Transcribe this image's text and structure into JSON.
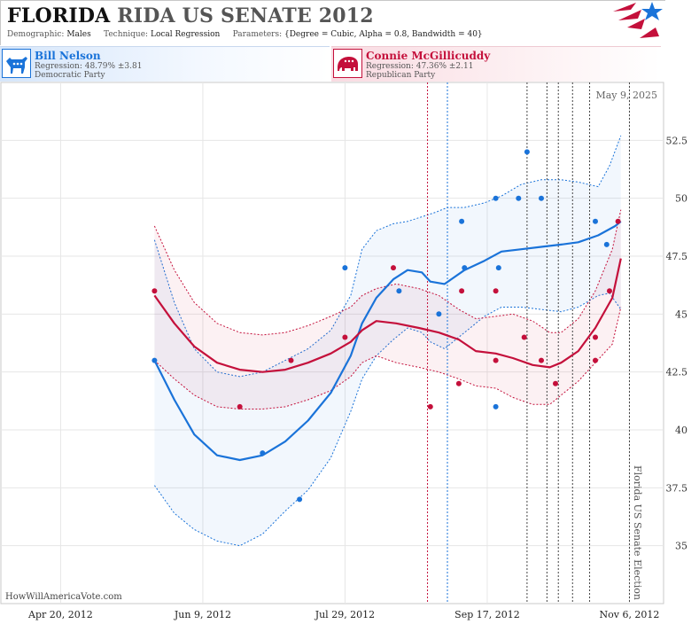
{
  "header": {
    "title_state": "FLORIDA",
    "title_rest": "RIDA US SENATE 2012",
    "demographic_label": "Demographic:",
    "demographic_value": "Males",
    "technique_label": "Technique:",
    "technique_value": "Local Regression",
    "parameters_label": "Parameters:",
    "parameters_value": "{Degree = Cubic, Alpha = 0.8, Bandwidth = 40}"
  },
  "candidates": {
    "dem": {
      "name": "Bill Nelson",
      "regression": "Regression: 48.79% ±3.81",
      "party": "Democratic Party",
      "color": "#1a73d9"
    },
    "rep": {
      "name": "Connie McGillicuddy",
      "regression": "Regression: 47.36% ±2.11",
      "party": "Republican Party",
      "color": "#c4103b"
    }
  },
  "credit": "HowWillAmericaVote.com",
  "chart_data": {
    "type": "scatter",
    "date_label": "May 9, 2025",
    "election_label": "Florida US Senate Election",
    "x_ticks": [
      "Apr 20, 2012",
      "Jun 9, 2012",
      "Jul 29, 2012",
      "Sep 17, 2012",
      "Nov 6, 2012"
    ],
    "y_ticks": [
      35,
      37.5,
      40,
      42.5,
      45,
      47.5,
      50,
      52.5
    ],
    "ylim": [
      32.5,
      55
    ],
    "xlim": [
      "2012-03-30",
      "2012-11-18"
    ],
    "series": [
      {
        "name": "Bill Nelson",
        "color": "#1a73d9",
        "points": [
          [
            "2012-05-23",
            43
          ],
          [
            "2012-06-30",
            39
          ],
          [
            "2012-07-13",
            37
          ],
          [
            "2012-07-29",
            47
          ],
          [
            "2012-08-17",
            46
          ],
          [
            "2012-08-31",
            45
          ],
          [
            "2012-09-08",
            49
          ],
          [
            "2012-09-09",
            47
          ],
          [
            "2012-09-20",
            41
          ],
          [
            "2012-09-20",
            50
          ],
          [
            "2012-09-21",
            47
          ],
          [
            "2012-09-28",
            50
          ],
          [
            "2012-10-01",
            52
          ],
          [
            "2012-10-06",
            50
          ],
          [
            "2012-10-25",
            49
          ],
          [
            "2012-10-29",
            48
          ]
        ],
        "fit": [
          [
            "2012-05-23",
            43
          ],
          [
            "2012-05-30",
            41.3
          ],
          [
            "2012-06-06",
            39.8
          ],
          [
            "2012-06-14",
            38.9
          ],
          [
            "2012-06-22",
            38.7
          ],
          [
            "2012-06-30",
            38.9
          ],
          [
            "2012-07-08",
            39.5
          ],
          [
            "2012-07-16",
            40.4
          ],
          [
            "2012-07-24",
            41.6
          ],
          [
            "2012-07-31",
            43.2
          ],
          [
            "2012-08-04",
            44.6
          ],
          [
            "2012-08-09",
            45.7
          ],
          [
            "2012-08-15",
            46.5
          ],
          [
            "2012-08-20",
            46.9
          ],
          [
            "2012-08-25",
            46.8
          ],
          [
            "2012-08-28",
            46.4
          ],
          [
            "2012-09-02",
            46.3
          ],
          [
            "2012-09-09",
            46.9
          ],
          [
            "2012-09-16",
            47.3
          ],
          [
            "2012-09-22",
            47.7
          ],
          [
            "2012-09-29",
            47.8
          ],
          [
            "2012-10-06",
            47.9
          ],
          [
            "2012-10-13",
            48
          ],
          [
            "2012-10-19",
            48.1
          ],
          [
            "2012-10-26",
            48.4
          ],
          [
            "2012-11-01",
            48.8
          ],
          [
            "2012-11-03",
            49
          ]
        ],
        "upper": [
          [
            "2012-05-23",
            48.2
          ],
          [
            "2012-05-30",
            45.5
          ],
          [
            "2012-06-06",
            43.5
          ],
          [
            "2012-06-14",
            42.5
          ],
          [
            "2012-06-22",
            42.3
          ],
          [
            "2012-06-30",
            42.5
          ],
          [
            "2012-07-08",
            43.0
          ],
          [
            "2012-07-16",
            43.5
          ],
          [
            "2012-07-24",
            44.3
          ],
          [
            "2012-07-31",
            45.8
          ],
          [
            "2012-08-04",
            47.8
          ],
          [
            "2012-08-09",
            48.6
          ],
          [
            "2012-08-15",
            48.9
          ],
          [
            "2012-08-20",
            49.0
          ],
          [
            "2012-08-25",
            49.2
          ],
          [
            "2012-08-30",
            49.4
          ],
          [
            "2012-09-03",
            49.6
          ],
          [
            "2012-09-09",
            49.6
          ],
          [
            "2012-09-16",
            49.8
          ],
          [
            "2012-09-22",
            50.1
          ],
          [
            "2012-09-29",
            50.6
          ],
          [
            "2012-10-06",
            50.8
          ],
          [
            "2012-10-13",
            50.8
          ],
          [
            "2012-10-19",
            50.7
          ],
          [
            "2012-10-26",
            50.5
          ],
          [
            "2012-10-30",
            51.4
          ],
          [
            "2012-11-03",
            52.7
          ]
        ],
        "lower": [
          [
            "2012-05-23",
            37.6
          ],
          [
            "2012-05-30",
            36.4
          ],
          [
            "2012-06-06",
            35.7
          ],
          [
            "2012-06-14",
            35.2
          ],
          [
            "2012-06-22",
            35
          ],
          [
            "2012-06-30",
            35.5
          ],
          [
            "2012-07-08",
            36.5
          ],
          [
            "2012-07-16",
            37.4
          ],
          [
            "2012-07-24",
            38.8
          ],
          [
            "2012-07-31",
            40.8
          ],
          [
            "2012-08-04",
            42.2
          ],
          [
            "2012-08-09",
            43.2
          ],
          [
            "2012-08-15",
            43.9
          ],
          [
            "2012-08-20",
            44.4
          ],
          [
            "2012-08-25",
            44.2
          ],
          [
            "2012-08-28",
            43.8
          ],
          [
            "2012-09-02",
            43.5
          ],
          [
            "2012-09-09",
            44.2
          ],
          [
            "2012-09-16",
            44.9
          ],
          [
            "2012-09-22",
            45.3
          ],
          [
            "2012-09-29",
            45.3
          ],
          [
            "2012-10-06",
            45.2
          ],
          [
            "2012-10-13",
            45.1
          ],
          [
            "2012-10-19",
            45.3
          ],
          [
            "2012-10-26",
            45.8
          ],
          [
            "2012-10-30",
            45.9
          ],
          [
            "2012-11-03",
            45.2
          ]
        ]
      },
      {
        "name": "Connie McGillicuddy",
        "color": "#c4103b",
        "points": [
          [
            "2012-05-23",
            46
          ],
          [
            "2012-06-22",
            41
          ],
          [
            "2012-07-10",
            43
          ],
          [
            "2012-07-29",
            44
          ],
          [
            "2012-08-15",
            47
          ],
          [
            "2012-08-28",
            41
          ],
          [
            "2012-09-07",
            42
          ],
          [
            "2012-09-08",
            46
          ],
          [
            "2012-09-20",
            43
          ],
          [
            "2012-09-20",
            46
          ],
          [
            "2012-09-30",
            44
          ],
          [
            "2012-10-06",
            43
          ],
          [
            "2012-10-11",
            42
          ],
          [
            "2012-10-25",
            44
          ],
          [
            "2012-10-25",
            43
          ],
          [
            "2012-10-30",
            46
          ],
          [
            "2012-11-02",
            49
          ]
        ],
        "fit": [
          [
            "2012-05-23",
            45.8
          ],
          [
            "2012-05-30",
            44.6
          ],
          [
            "2012-06-06",
            43.6
          ],
          [
            "2012-06-14",
            42.9
          ],
          [
            "2012-06-22",
            42.6
          ],
          [
            "2012-06-30",
            42.5
          ],
          [
            "2012-07-08",
            42.6
          ],
          [
            "2012-07-16",
            42.9
          ],
          [
            "2012-07-24",
            43.3
          ],
          [
            "2012-07-31",
            43.8
          ],
          [
            "2012-08-04",
            44.3
          ],
          [
            "2012-08-09",
            44.7
          ],
          [
            "2012-08-16",
            44.6
          ],
          [
            "2012-08-24",
            44.4
          ],
          [
            "2012-08-31",
            44.2
          ],
          [
            "2012-09-07",
            43.9
          ],
          [
            "2012-09-13",
            43.4
          ],
          [
            "2012-09-20",
            43.3
          ],
          [
            "2012-09-26",
            43.1
          ],
          [
            "2012-10-03",
            42.8
          ],
          [
            "2012-10-09",
            42.7
          ],
          [
            "2012-10-13",
            42.9
          ],
          [
            "2012-10-19",
            43.4
          ],
          [
            "2012-10-25",
            44.4
          ],
          [
            "2012-10-31",
            45.7
          ],
          [
            "2012-11-03",
            47.4
          ]
        ],
        "upper": [
          [
            "2012-05-23",
            48.8
          ],
          [
            "2012-05-30",
            46.9
          ],
          [
            "2012-06-06",
            45.5
          ],
          [
            "2012-06-14",
            44.6
          ],
          [
            "2012-06-22",
            44.2
          ],
          [
            "2012-06-30",
            44.1
          ],
          [
            "2012-07-08",
            44.2
          ],
          [
            "2012-07-16",
            44.5
          ],
          [
            "2012-07-24",
            44.9
          ],
          [
            "2012-07-31",
            45.3
          ],
          [
            "2012-08-04",
            45.8
          ],
          [
            "2012-08-09",
            46.1
          ],
          [
            "2012-08-16",
            46.3
          ],
          [
            "2012-08-24",
            46.1
          ],
          [
            "2012-08-31",
            45.8
          ],
          [
            "2012-09-07",
            45.2
          ],
          [
            "2012-09-13",
            44.8
          ],
          [
            "2012-09-20",
            44.9
          ],
          [
            "2012-09-26",
            45
          ],
          [
            "2012-10-03",
            44.7
          ],
          [
            "2012-10-09",
            44.2
          ],
          [
            "2012-10-13",
            44.2
          ],
          [
            "2012-10-19",
            44.8
          ],
          [
            "2012-10-25",
            46
          ],
          [
            "2012-10-31",
            47.8
          ],
          [
            "2012-11-03",
            49.5
          ]
        ],
        "lower": [
          [
            "2012-05-23",
            43
          ],
          [
            "2012-05-30",
            42.2
          ],
          [
            "2012-06-06",
            41.5
          ],
          [
            "2012-06-14",
            41
          ],
          [
            "2012-06-22",
            40.9
          ],
          [
            "2012-06-30",
            40.9
          ],
          [
            "2012-07-08",
            41
          ],
          [
            "2012-07-16",
            41.3
          ],
          [
            "2012-07-24",
            41.7
          ],
          [
            "2012-07-31",
            42.3
          ],
          [
            "2012-08-04",
            42.9
          ],
          [
            "2012-08-09",
            43.2
          ],
          [
            "2012-08-16",
            42.9
          ],
          [
            "2012-08-24",
            42.7
          ],
          [
            "2012-08-31",
            42.5
          ],
          [
            "2012-09-07",
            42.2
          ],
          [
            "2012-09-13",
            41.9
          ],
          [
            "2012-09-20",
            41.8
          ],
          [
            "2012-09-26",
            41.4
          ],
          [
            "2012-10-03",
            41.1
          ],
          [
            "2012-10-09",
            41.1
          ],
          [
            "2012-10-13",
            41.5
          ],
          [
            "2012-10-19",
            42.1
          ],
          [
            "2012-10-25",
            42.9
          ],
          [
            "2012-10-31",
            43.7
          ],
          [
            "2012-11-03",
            45.3
          ]
        ]
      }
    ],
    "event_lines": [
      {
        "date": "2012-08-27",
        "color": "#c4103b"
      },
      {
        "date": "2012-09-03",
        "color": "#1a73d9"
      },
      {
        "date": "2012-10-01",
        "color": "#444444"
      },
      {
        "date": "2012-10-08",
        "color": "#444444"
      },
      {
        "date": "2012-10-12",
        "color": "#444444"
      },
      {
        "date": "2012-10-17",
        "color": "#444444"
      },
      {
        "date": "2012-10-23",
        "color": "#444444"
      },
      {
        "date": "2012-11-06",
        "color": "#444444"
      }
    ],
    "grid": true
  }
}
